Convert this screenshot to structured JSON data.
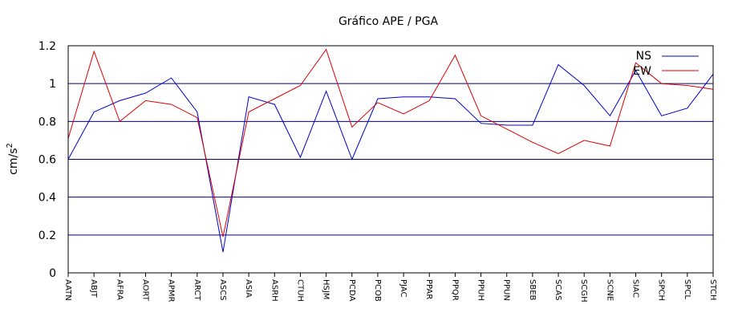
{
  "chart_data": {
    "type": "line",
    "title": "Gráfico  APE / PGA",
    "ylabel": "cm/s",
    "ylabel_sup": "2",
    "xlabel": "",
    "ylim": [
      0,
      1.2
    ],
    "yticks": [
      0,
      0.2,
      0.4,
      0.6,
      0.8,
      1,
      1.2
    ],
    "ytick_labels": [
      "0",
      "0.2",
      "0.4",
      "0.6",
      "0.8",
      "1",
      "1.2"
    ],
    "grid": "horizontal",
    "legend_position": "top-right",
    "categories": [
      "AATN",
      "ABJT",
      "AFRA",
      "AORT",
      "APMR",
      "ARCT",
      "ASCS",
      "ASIA",
      "ASRH",
      "CTUH",
      "HSJM",
      "PCDA",
      "PCOB",
      "PJAC",
      "PPAR",
      "PPQR",
      "PPUH",
      "PPUN",
      "SBEB",
      "SCAS",
      "SCGH",
      "SCNE",
      "SIAC",
      "SPCH",
      "SPCL",
      "STCH"
    ],
    "series": [
      {
        "name": "NS",
        "color": "#0000cc",
        "values": [
          0.6,
          0.85,
          0.91,
          0.95,
          1.03,
          0.85,
          0.11,
          0.93,
          0.89,
          0.61,
          0.96,
          0.6,
          0.92,
          0.93,
          0.93,
          0.92,
          0.79,
          0.78,
          0.78,
          1.1,
          0.99,
          0.83,
          1.07,
          0.83,
          0.87,
          1.05
        ]
      },
      {
        "name": "EW",
        "color": "#dd0000",
        "values": [
          0.71,
          1.17,
          0.8,
          0.91,
          0.89,
          0.82,
          0.19,
          0.85,
          0.92,
          0.99,
          1.18,
          0.77,
          0.9,
          0.84,
          0.91,
          1.15,
          0.83,
          0.76,
          0.69,
          0.63,
          0.7,
          0.67,
          1.11,
          1.0,
          0.99,
          0.97
        ]
      }
    ]
  }
}
